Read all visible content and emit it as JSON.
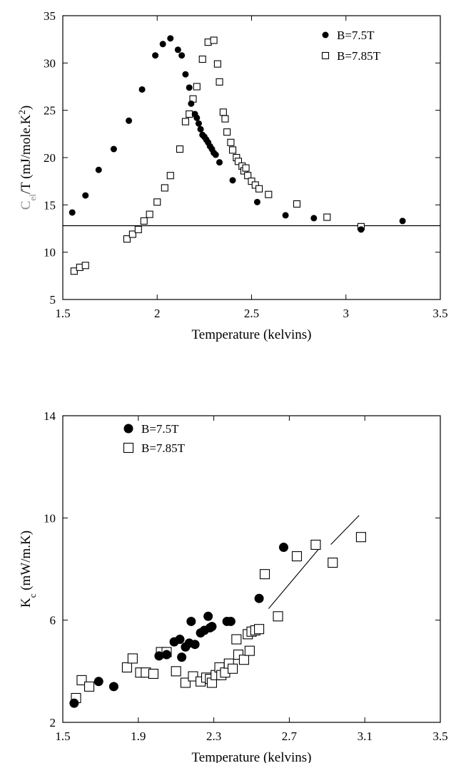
{
  "chart_data": [
    {
      "type": "scatter",
      "title": "",
      "xlabel": "Temperature (kelvins)",
      "ylabel": {
        "base": "C",
        "sub": "el",
        "mid": "/T  (mJ/mole.K",
        "sup": "2",
        "end": ")"
      },
      "xlim": [
        1.5,
        3.5
      ],
      "ylim": [
        5,
        35
      ],
      "xticks": [
        "1.5",
        "2",
        "2.5",
        "3",
        "3.5"
      ],
      "yticks": [
        "5",
        "10",
        "15",
        "20",
        "25",
        "30",
        "35"
      ],
      "legend_position": "top-right",
      "reference_line": {
        "y": 12.8,
        "x_from": 1.5,
        "x_to": 3.5
      },
      "series": [
        {
          "name": "B=7.5T",
          "marker": "filled-circle",
          "x": [
            1.55,
            1.62,
            1.69,
            1.77,
            1.85,
            1.92,
            1.99,
            2.03,
            2.07,
            2.11,
            2.13,
            2.15,
            2.17,
            2.18,
            2.2,
            2.21,
            2.22,
            2.23,
            2.24,
            2.25,
            2.26,
            2.27,
            2.28,
            2.29,
            2.3,
            2.31,
            2.33,
            2.4,
            2.53,
            2.68,
            2.83,
            3.08,
            3.3
          ],
          "y": [
            14.2,
            16.0,
            18.7,
            20.9,
            23.9,
            27.2,
            30.8,
            32.0,
            32.6,
            31.4,
            30.8,
            28.8,
            27.4,
            25.7,
            24.6,
            24.2,
            23.6,
            23.0,
            22.4,
            22.2,
            21.9,
            21.6,
            21.2,
            20.9,
            20.5,
            20.3,
            19.5,
            17.6,
            15.3,
            13.9,
            13.6,
            12.4,
            13.3
          ]
        },
        {
          "name": "B=7.85T",
          "marker": "open-square",
          "x": [
            1.56,
            1.59,
            1.62,
            1.84,
            1.87,
            1.9,
            1.93,
            1.96,
            2.0,
            2.04,
            2.07,
            2.12,
            2.15,
            2.17,
            2.19,
            2.21,
            2.24,
            2.27,
            2.3,
            2.32,
            2.33,
            2.35,
            2.36,
            2.37,
            2.39,
            2.4,
            2.42,
            2.43,
            2.45,
            2.46,
            2.47,
            2.48,
            2.5,
            2.52,
            2.54,
            2.59,
            2.74,
            2.9,
            3.08
          ],
          "y": [
            8.0,
            8.4,
            8.6,
            11.4,
            11.9,
            12.4,
            13.3,
            14.0,
            15.3,
            16.8,
            18.1,
            20.9,
            23.8,
            24.6,
            26.2,
            27.5,
            30.4,
            32.2,
            32.4,
            29.9,
            28.0,
            24.8,
            24.1,
            22.7,
            21.6,
            20.8,
            20.0,
            19.6,
            19.1,
            18.6,
            18.9,
            18.1,
            17.5,
            17.1,
            16.7,
            16.1,
            15.1,
            13.7,
            12.7
          ]
        }
      ]
    },
    {
      "type": "scatter",
      "title": "",
      "xlabel": "Temperature (kelvins)",
      "ylabel": {
        "base": "K",
        "sub": "c",
        "mid": "  (mW/m.K)",
        "sup": "",
        "end": ""
      },
      "xlim": [
        1.5,
        3.5
      ],
      "ylim": [
        2,
        14
      ],
      "xticks": [
        "1.5",
        "1.9",
        "2.3",
        "2.7",
        "3.1",
        "3.5"
      ],
      "yticks": [
        "2",
        "6",
        "10",
        "14"
      ],
      "legend_position": "top-left",
      "trend_segments": [
        {
          "x": [
            2.59,
            2.86
          ],
          "y": [
            6.45,
            8.82
          ]
        },
        {
          "x": [
            2.92,
            3.07
          ],
          "y": [
            8.96,
            10.1
          ]
        }
      ],
      "series": [
        {
          "name": "B=7.5T",
          "marker": "filled-circle",
          "x": [
            1.56,
            1.69,
            1.77,
            2.01,
            2.05,
            2.09,
            2.12,
            2.13,
            2.15,
            2.17,
            2.18,
            2.2,
            2.23,
            2.25,
            2.27,
            2.28,
            2.29,
            2.37,
            2.39,
            2.54,
            2.67
          ],
          "y": [
            2.75,
            3.6,
            3.4,
            4.6,
            4.65,
            5.15,
            5.25,
            4.55,
            4.95,
            5.1,
            5.95,
            5.05,
            5.5,
            5.6,
            6.15,
            5.7,
            5.75,
            5.95,
            5.95,
            6.85,
            8.85
          ]
        },
        {
          "name": "B=7.85T",
          "marker": "open-square",
          "x": [
            1.57,
            1.6,
            1.64,
            1.84,
            1.87,
            1.91,
            1.94,
            1.98,
            2.02,
            2.05,
            2.1,
            2.15,
            2.19,
            2.23,
            2.26,
            2.28,
            2.29,
            2.31,
            2.33,
            2.34,
            2.36,
            2.38,
            2.4,
            2.42,
            2.43,
            2.46,
            2.48,
            2.49,
            2.5,
            2.52,
            2.54,
            2.57,
            2.64,
            2.74,
            2.84,
            2.93,
            3.08
          ],
          "y": [
            2.95,
            3.65,
            3.4,
            4.15,
            4.5,
            3.95,
            3.95,
            3.9,
            4.75,
            4.75,
            4.0,
            3.55,
            3.8,
            3.6,
            3.75,
            3.7,
            3.55,
            3.85,
            4.15,
            3.85,
            3.95,
            4.3,
            4.1,
            5.25,
            4.65,
            4.45,
            5.45,
            4.8,
            5.55,
            5.6,
            5.65,
            7.8,
            6.15,
            8.5,
            8.95,
            8.25,
            9.25
          ]
        }
      ]
    }
  ]
}
